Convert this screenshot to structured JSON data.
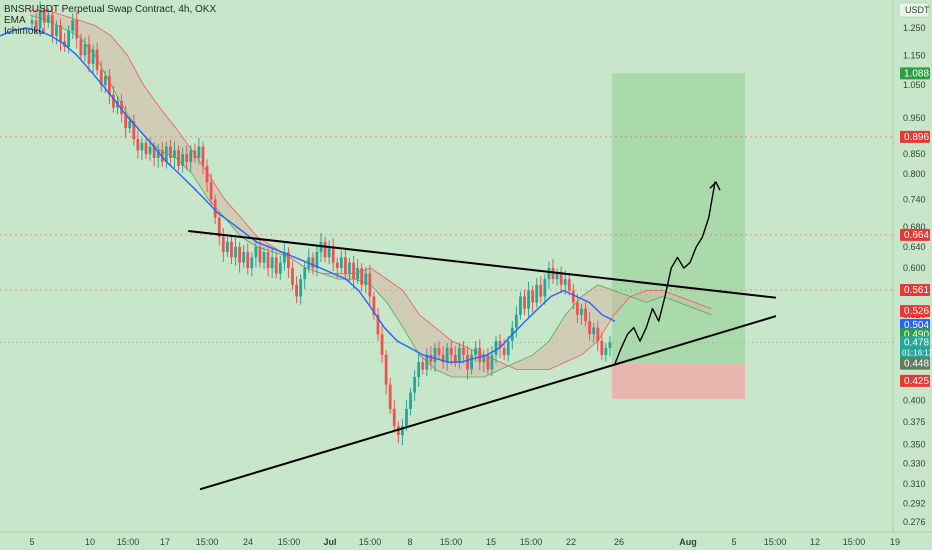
{
  "header": {
    "symbol_line": "BNSRUSDT Perpetual Swap Contract, 4h, OKX",
    "indicators": [
      "EMA",
      "Ichimoku"
    ],
    "currency": "USDT"
  },
  "colors": {
    "background": "#c8e6c9",
    "bull": "#26a69a",
    "bear": "#ef5350",
    "ema": "#2962ff",
    "cloud_span_a": "#4caf50",
    "cloud_span_b": "#f05a5a",
    "trendline": "#000000",
    "target_zone": "#a5d6a7",
    "stop_zone": "#f4a6a6"
  },
  "price_axis": {
    "ticks": [
      "1.250",
      "1.150",
      "1.050",
      "0.950",
      "0.850",
      "0.800",
      "0.740",
      "0.680",
      "0.640",
      "0.600",
      "0.560",
      "0.520",
      "0.480",
      "0.450",
      "0.400",
      "0.375",
      "0.350",
      "0.330",
      "0.310",
      "0.292",
      "0.276"
    ],
    "tick_values": [
      1.25,
      1.15,
      1.05,
      0.95,
      0.85,
      0.8,
      0.74,
      0.68,
      0.64,
      0.6,
      0.56,
      0.52,
      0.48,
      0.45,
      0.4,
      0.375,
      0.35,
      0.33,
      0.31,
      0.292,
      0.276
    ],
    "labels": [
      {
        "text": "1.088",
        "value": 1.088,
        "color": "#2ea043"
      },
      {
        "text": "0.896",
        "value": 0.896,
        "color": "#e53935"
      },
      {
        "text": "0.664",
        "value": 0.664,
        "color": "#e53935"
      },
      {
        "text": "0.561",
        "value": 0.561,
        "color": "#e53935"
      },
      {
        "text": "0.526",
        "value": 0.526,
        "color": "#e53935"
      },
      {
        "text": "0.504",
        "value": 0.504,
        "color": "#2962ff"
      },
      {
        "text": "0.490",
        "value": 0.49,
        "color": "#2ea043"
      },
      {
        "text": "0.478",
        "value": 0.478,
        "color": "#26a69a",
        "sub": "01:16:12"
      },
      {
        "text": "0.448",
        "value": 0.448,
        "color": "#607d60"
      },
      {
        "text": "0.425",
        "value": 0.425,
        "color": "#e53935"
      }
    ],
    "dotted_levels": [
      0.896,
      0.664,
      0.561
    ]
  },
  "time_axis": {
    "ticks": [
      "5",
      "10",
      "15:00",
      "17",
      "15:00",
      "24",
      "15:00",
      "Jul",
      "15:00",
      "8",
      "15:00",
      "15",
      "15:00",
      "22",
      "26",
      "Aug",
      "5",
      "15:00",
      "12",
      "15:00",
      "19"
    ],
    "bold": [
      "Jul",
      "Aug"
    ]
  },
  "chart_data": {
    "type": "candlestick",
    "title": "BNSRUSDT Perpetual Swap Contract, 4h, OKX",
    "ylim": [
      0.276,
      1.3
    ],
    "y_scale": "log",
    "timeframe": "4h",
    "start_date": "2024-06-04",
    "last_price": 0.478,
    "candle_closes": [
      1.28,
      1.25,
      1.32,
      1.27,
      1.3,
      1.22,
      1.26,
      1.2,
      1.18,
      1.24,
      1.28,
      1.21,
      1.15,
      1.19,
      1.12,
      1.17,
      1.1,
      1.05,
      1.08,
      1.02,
      0.98,
      1.0,
      0.96,
      0.92,
      0.94,
      0.89,
      0.86,
      0.88,
      0.85,
      0.87,
      0.84,
      0.86,
      0.83,
      0.87,
      0.84,
      0.86,
      0.82,
      0.85,
      0.83,
      0.86,
      0.84,
      0.87,
      0.82,
      0.78,
      0.74,
      0.7,
      0.66,
      0.63,
      0.65,
      0.62,
      0.64,
      0.61,
      0.63,
      0.6,
      0.62,
      0.64,
      0.61,
      0.63,
      0.6,
      0.62,
      0.59,
      0.61,
      0.63,
      0.6,
      0.57,
      0.55,
      0.58,
      0.6,
      0.62,
      0.6,
      0.63,
      0.65,
      0.62,
      0.64,
      0.61,
      0.6,
      0.62,
      0.59,
      0.61,
      0.58,
      0.6,
      0.57,
      0.59,
      0.55,
      0.52,
      0.49,
      0.46,
      0.42,
      0.39,
      0.37,
      0.36,
      0.37,
      0.39,
      0.41,
      0.43,
      0.45,
      0.44,
      0.46,
      0.45,
      0.47,
      0.46,
      0.45,
      0.47,
      0.46,
      0.45,
      0.47,
      0.46,
      0.44,
      0.46,
      0.47,
      0.45,
      0.46,
      0.44,
      0.46,
      0.48,
      0.47,
      0.46,
      0.48,
      0.5,
      0.52,
      0.55,
      0.53,
      0.56,
      0.54,
      0.57,
      0.55,
      0.58,
      0.6,
      0.58,
      0.59,
      0.57,
      0.58,
      0.56,
      0.54,
      0.52,
      0.53,
      0.51,
      0.49,
      0.5,
      0.48,
      0.46,
      0.47,
      0.478
    ],
    "ema_values": [
      1.22,
      1.24,
      1.25,
      1.24,
      1.22,
      1.19,
      1.15,
      1.1,
      1.05,
      1.0,
      0.95,
      0.91,
      0.87,
      0.83,
      0.8,
      0.77,
      0.74,
      0.71,
      0.69,
      0.67,
      0.65,
      0.64,
      0.63,
      0.62,
      0.61,
      0.6,
      0.59,
      0.58,
      0.56,
      0.53,
      0.5,
      0.48,
      0.47,
      0.46,
      0.455,
      0.45,
      0.45,
      0.455,
      0.46,
      0.47,
      0.49,
      0.51,
      0.53,
      0.55,
      0.56,
      0.55,
      0.54,
      0.52,
      0.51
    ],
    "cloud_span_a": [
      1.3,
      1.28,
      1.25,
      1.22,
      1.15,
      1.05,
      0.96,
      0.9,
      0.86,
      0.84,
      0.8,
      0.74,
      0.7,
      0.66,
      0.64,
      0.63,
      0.62,
      0.6,
      0.59,
      0.58,
      0.58,
      0.57,
      0.54,
      0.5,
      0.46,
      0.44,
      0.43,
      0.43,
      0.43,
      0.44,
      0.45,
      0.46,
      0.48,
      0.52,
      0.55,
      0.57,
      0.56,
      0.55,
      0.54,
      0.55,
      0.54,
      0.53,
      0.52
    ],
    "cloud_span_b": [
      1.32,
      1.32,
      1.3,
      1.28,
      1.26,
      1.22,
      1.15,
      1.05,
      0.98,
      0.92,
      0.86,
      0.8,
      0.74,
      0.7,
      0.66,
      0.64,
      0.62,
      0.6,
      0.59,
      0.59,
      0.59,
      0.6,
      0.58,
      0.56,
      0.52,
      0.5,
      0.48,
      0.47,
      0.46,
      0.45,
      0.44,
      0.44,
      0.44,
      0.45,
      0.46,
      0.48,
      0.52,
      0.55,
      0.56,
      0.56,
      0.55,
      0.54,
      0.53
    ],
    "triangle_upper_line": {
      "x_dates": [
        "2024-06-17",
        "2024-08-09"
      ],
      "y": [
        0.672,
        0.548
      ]
    },
    "triangle_lower_line": {
      "x_dates": [
        "2024-06-13",
        "2024-08-09"
      ],
      "y": [
        0.305,
        0.518
      ]
    },
    "long_position": {
      "entry": 0.448,
      "stop": 0.425,
      "target": 1.088
    },
    "projected_path": [
      0.448,
      0.47,
      0.49,
      0.5,
      0.48,
      0.5,
      0.53,
      0.51,
      0.55,
      0.6,
      0.62,
      0.6,
      0.61,
      0.64,
      0.66,
      0.7,
      0.78
    ]
  }
}
